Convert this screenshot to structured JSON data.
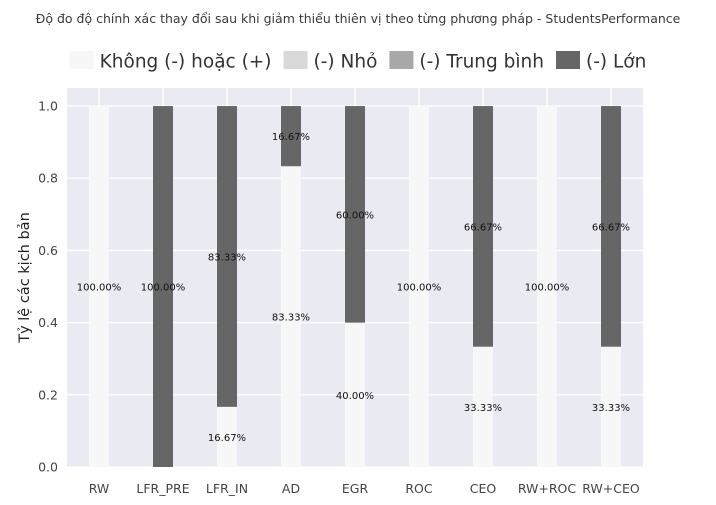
{
  "chart_data": {
    "type": "bar",
    "stacked": true,
    "title": "Độ đo độ chính xác thay đổi sau khi giảm thiểu thiên vị theo từng phương pháp - StudentsPerformance",
    "xlabel": "",
    "ylabel": "Tỷ lệ các kịch bản",
    "ylim": [
      0,
      1.05
    ],
    "yticks": [
      "0.0",
      "0.2",
      "0.4",
      "0.6",
      "0.8",
      "1.0"
    ],
    "grid": true,
    "legend_position": "top",
    "categories": [
      "RW",
      "LFR_PRE",
      "LFR_IN",
      "AD",
      "EGR",
      "ROC",
      "CEO",
      "RW+ROC",
      "RW+CEO"
    ],
    "series": [
      {
        "name": "Không (-) hoặc (+)",
        "color": "#f7f7f7",
        "values": [
          1.0,
          0.0,
          0.1667,
          0.8333,
          0.4,
          1.0,
          0.3333,
          1.0,
          0.3333
        ],
        "labels": [
          "100.00%",
          "",
          "16.67%",
          "83.33%",
          "40.00%",
          "100.00%",
          "33.33%",
          "100.00%",
          "33.33%"
        ]
      },
      {
        "name": "(-) Nhỏ",
        "color": "#d9d9d9",
        "values": [
          0,
          0,
          0,
          0,
          0,
          0,
          0,
          0,
          0
        ],
        "labels": [
          "",
          "",
          "",
          "",
          "",
          "",
          "",
          "",
          ""
        ]
      },
      {
        "name": "(-) Trung bình",
        "color": "#a8a8a8",
        "values": [
          0,
          0,
          0,
          0,
          0,
          0,
          0,
          0,
          0
        ],
        "labels": [
          "",
          "",
          "",
          "",
          "",
          "",
          "",
          "",
          ""
        ]
      },
      {
        "name": "(-) Lớn",
        "color": "#666666",
        "values": [
          0.0,
          1.0,
          0.8333,
          0.1667,
          0.6,
          0.0,
          0.6667,
          0.0,
          0.6667
        ],
        "labels": [
          "",
          "100.00%",
          "83.33%",
          "16.67%",
          "60.00%",
          "",
          "66.67%",
          "",
          "66.67%"
        ]
      }
    ]
  },
  "colors": {
    "plot_background": "#eaeaf2",
    "grid": "#ffffff"
  }
}
